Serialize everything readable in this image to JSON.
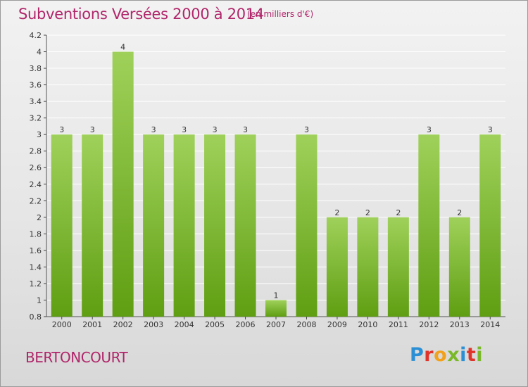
{
  "header": {
    "title": "Subventions Versées 2000 à 2014",
    "subtitle": "(en milliers d'€)"
  },
  "footer": {
    "commune": "BERTONCOURT",
    "logo_text": "Proxiti",
    "logo_colors": [
      "#2a8fd4",
      "#e0342b",
      "#f2a11b",
      "#7ab829",
      "#2a8fd4",
      "#e0342b",
      "#7ab829"
    ]
  },
  "colors": {
    "bar_top": "#9fd15a",
    "bar_bottom": "#5f9e12",
    "title": "#b0256a",
    "grid": "#ffffff"
  },
  "chart_data": {
    "type": "bar",
    "categories": [
      "2000",
      "2001",
      "2002",
      "2003",
      "2004",
      "2005",
      "2006",
      "2007",
      "2008",
      "2009",
      "2010",
      "2011",
      "2012",
      "2013",
      "2014"
    ],
    "values": [
      3,
      3,
      4,
      3,
      3,
      3,
      3,
      1,
      3,
      2,
      2,
      2,
      3,
      2,
      3
    ],
    "ylim": [
      0.8,
      4.2
    ],
    "yticks": [
      "0.8",
      "1",
      "1.2",
      "1.4",
      "1.6",
      "1.8",
      "2",
      "2.2",
      "2.4",
      "2.6",
      "2.8",
      "3",
      "3.2",
      "3.4",
      "3.6",
      "3.8",
      "4",
      "4.2"
    ],
    "grid": "horizontal"
  }
}
